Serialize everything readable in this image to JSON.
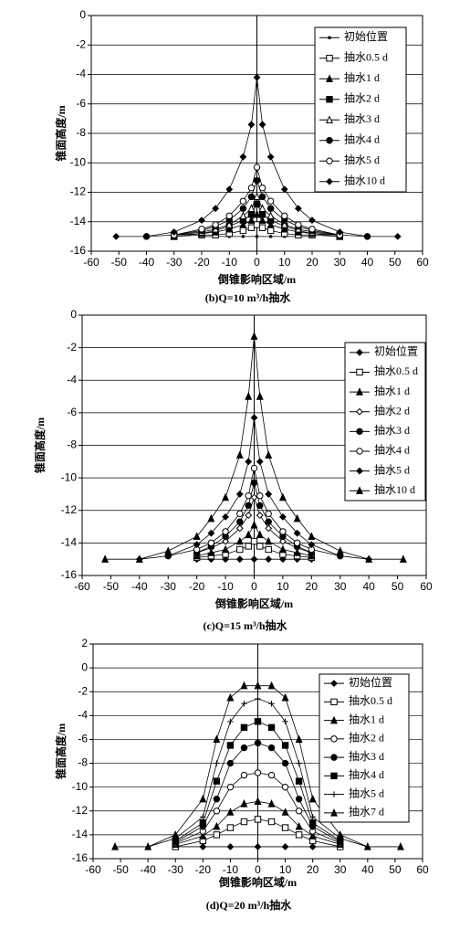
{
  "chart_data": [
    {
      "type": "line",
      "title": "(b)Q=10 m³/h抽水",
      "x_label": "倒锥影响区域/m",
      "y_label": "锥面高度/m",
      "xlim": [
        -60,
        60
      ],
      "ylim": [
        -16,
        0
      ],
      "xticks": [
        -60,
        -50,
        -40,
        -30,
        -20,
        -10,
        0,
        10,
        20,
        30,
        40,
        50,
        60
      ],
      "yticks": [
        -16,
        -14,
        -12,
        -10,
        -8,
        -6,
        -4,
        -2,
        0
      ],
      "grid": true,
      "legend": "upper right",
      "series": [
        {
          "name": "初始位置",
          "marker": "dot",
          "color": "#000",
          "x": [
            -20,
            -15,
            -10,
            -5,
            0,
            5,
            10,
            15,
            20
          ],
          "values": [
            -15,
            -15,
            -15,
            -15,
            -15,
            -15,
            -15,
            -15,
            -15
          ]
        },
        {
          "name": "抽水0.5 d",
          "marker": "open-square",
          "color": "#000",
          "x": [
            -30,
            -20,
            -15,
            -10,
            -5,
            -2,
            0,
            2,
            5,
            10,
            15,
            20,
            30
          ],
          "values": [
            -15,
            -14.9,
            -14.9,
            -14.8,
            -14.6,
            -14.4,
            -14.2,
            -14.4,
            -14.6,
            -14.8,
            -14.9,
            -14.9,
            -15
          ]
        },
        {
          "name": "抽水1 d",
          "marker": "triangle",
          "color": "#000",
          "x": [
            -30,
            -20,
            -15,
            -10,
            -5,
            -2,
            0,
            2,
            5,
            10,
            15,
            20,
            30
          ],
          "values": [
            -15,
            -14.8,
            -14.7,
            -14.5,
            -14.2,
            -13.9,
            -13.5,
            -13.9,
            -14.2,
            -14.5,
            -14.7,
            -14.8,
            -15
          ]
        },
        {
          "name": "抽水2 d",
          "marker": "square",
          "color": "#000",
          "x": [
            -30,
            -20,
            -15,
            -10,
            -5,
            -2,
            0,
            2,
            5,
            10,
            15,
            20,
            30
          ],
          "values": [
            -14.9,
            -14.8,
            -14.6,
            -14.3,
            -13.9,
            -13.5,
            -12.8,
            -13.5,
            -13.9,
            -14.3,
            -14.6,
            -14.8,
            -14.9
          ]
        },
        {
          "name": "抽水3 d",
          "marker": "open-triangle",
          "color": "#000",
          "x": [
            -30,
            -20,
            -15,
            -10,
            -5,
            -2,
            0,
            2,
            5,
            10,
            15,
            20,
            30
          ],
          "values": [
            -14.9,
            -14.7,
            -14.5,
            -14.2,
            -13.6,
            -13.1,
            -12.3,
            -13.1,
            -13.6,
            -14.2,
            -14.5,
            -14.7,
            -14.9
          ]
        },
        {
          "name": "抽水4 d",
          "marker": "circle",
          "color": "#000",
          "x": [
            -30,
            -20,
            -15,
            -10,
            -5,
            -2,
            0,
            2,
            5,
            10,
            15,
            20,
            30
          ],
          "values": [
            -14.9,
            -14.6,
            -14.3,
            -13.9,
            -13.1,
            -12.3,
            -11.2,
            -12.3,
            -13.1,
            -13.9,
            -14.3,
            -14.6,
            -14.9
          ]
        },
        {
          "name": "抽水5 d",
          "marker": "open-circle",
          "color": "#000",
          "x": [
            -40,
            -30,
            -20,
            -15,
            -10,
            -5,
            -2,
            0,
            2,
            5,
            10,
            15,
            20,
            30,
            40
          ],
          "values": [
            -15,
            -14.9,
            -14.5,
            -14.2,
            -13.6,
            -12.6,
            -11.7,
            -10.3,
            -11.7,
            -12.6,
            -13.6,
            -14.2,
            -14.5,
            -14.9,
            -15
          ]
        },
        {
          "name": "抽水10 d",
          "marker": "diamond",
          "color": "#000",
          "x": [
            -51,
            -40,
            -30,
            -20,
            -15,
            -10,
            -5,
            -2,
            0,
            2,
            5,
            10,
            15,
            20,
            30,
            40,
            51
          ],
          "values": [
            -15,
            -15,
            -14.7,
            -13.9,
            -13.1,
            -11.8,
            -9.6,
            -7.4,
            -4.2,
            -7.4,
            -9.6,
            -11.8,
            -13.1,
            -13.9,
            -14.7,
            -15,
            -15
          ]
        }
      ]
    },
    {
      "type": "line",
      "title": "(c)Q=15 m³/h抽水",
      "x_label": "倒锥影响区域/m",
      "y_label": "锥面高度/m",
      "xlim": [
        -60,
        60
      ],
      "ylim": [
        -16,
        0
      ],
      "xticks": [
        -60,
        -50,
        -40,
        -30,
        -20,
        -10,
        0,
        10,
        20,
        30,
        40,
        50,
        60
      ],
      "yticks": [
        -16,
        -14,
        -12,
        -10,
        -8,
        -6,
        -4,
        -2,
        0
      ],
      "grid": true,
      "legend": "upper right",
      "series": [
        {
          "name": "初始位置",
          "marker": "diamond",
          "color": "#000",
          "x": [
            -20,
            -15,
            -10,
            -5,
            0,
            5,
            10,
            15,
            20
          ],
          "values": [
            -15,
            -15,
            -15,
            -15,
            -15,
            -15,
            -15,
            -15,
            -15
          ]
        },
        {
          "name": "抽水0.5 d",
          "marker": "open-square",
          "color": "#000",
          "x": [
            -20,
            -15,
            -10,
            -5,
            -2,
            0,
            2,
            5,
            10,
            15,
            20
          ],
          "values": [
            -14.9,
            -14.8,
            -14.7,
            -14.4,
            -14.2,
            -13.9,
            -14.2,
            -14.4,
            -14.7,
            -14.8,
            -14.9
          ]
        },
        {
          "name": "抽水1 d",
          "marker": "triangle",
          "color": "#000",
          "x": [
            -20,
            -15,
            -10,
            -5,
            -2,
            0,
            2,
            5,
            10,
            15,
            20
          ],
          "values": [
            -14.8,
            -14.6,
            -14.4,
            -13.9,
            -13.5,
            -12.9,
            -13.5,
            -13.9,
            -14.4,
            -14.6,
            -14.8
          ]
        },
        {
          "name": "抽水2 d",
          "marker": "open-diamond",
          "color": "#000",
          "x": [
            -20,
            -15,
            -10,
            -5,
            -2,
            0,
            2,
            5,
            10,
            15,
            20
          ],
          "values": [
            -14.6,
            -14.3,
            -13.9,
            -13.1,
            -12.3,
            -11.2,
            -12.3,
            -13.1,
            -13.9,
            -14.3,
            -14.6
          ]
        },
        {
          "name": "抽水3 d",
          "marker": "circle",
          "color": "#000",
          "x": [
            -20,
            -15,
            -10,
            -5,
            -2,
            0,
            2,
            5,
            10,
            15,
            20
          ],
          "values": [
            -14.6,
            -14.2,
            -13.6,
            -12.7,
            -11.7,
            -10.3,
            -11.7,
            -12.7,
            -13.6,
            -14.2,
            -14.6
          ]
        },
        {
          "name": "抽水4 d",
          "marker": "open-circle",
          "color": "#000",
          "x": [
            -30,
            -20,
            -15,
            -10,
            -5,
            -2,
            0,
            2,
            5,
            10,
            15,
            20,
            30
          ],
          "values": [
            -14.8,
            -14.4,
            -14,
            -13.3,
            -12.2,
            -11.1,
            -9.4,
            -11.1,
            -12.2,
            -13.3,
            -14,
            -14.4,
            -14.8
          ]
        },
        {
          "name": "抽水5 d",
          "marker": "diamond",
          "color": "#000",
          "x": [
            -40,
            -30,
            -20,
            -15,
            -10,
            -5,
            -2,
            0,
            2,
            5,
            10,
            15,
            20,
            30,
            40
          ],
          "values": [
            -15,
            -14.8,
            -14.1,
            -13.4,
            -12.4,
            -11,
            -9,
            -6.3,
            -9,
            -11,
            -12.4,
            -13.4,
            -14.1,
            -14.8,
            -15
          ]
        },
        {
          "name": "抽水10 d",
          "marker": "triangle",
          "color": "#000",
          "x": [
            -52,
            -40,
            -30,
            -20,
            -15,
            -10,
            -5,
            -2,
            0,
            2,
            5,
            10,
            15,
            20,
            30,
            40,
            52
          ],
          "values": [
            -15,
            -15,
            -14.5,
            -13.6,
            -12.5,
            -11.2,
            -8.6,
            -5,
            -1.3,
            -5,
            -8.6,
            -11.2,
            -12.5,
            -13.6,
            -14.5,
            -15,
            -15
          ]
        }
      ]
    },
    {
      "type": "line",
      "title": "(d)Q=20 m³/h抽水",
      "x_label": "倒锥影响区域/m",
      "y_label": "锥面高度/m",
      "xlim": [
        -60,
        60
      ],
      "ylim": [
        -16,
        2
      ],
      "xticks": [
        -60,
        -50,
        -40,
        -30,
        -20,
        -10,
        0,
        10,
        20,
        30,
        40,
        50,
        60
      ],
      "yticks": [
        -16,
        -14,
        -12,
        -10,
        -8,
        -6,
        -4,
        -2,
        0,
        2
      ],
      "grid": true,
      "legend": "upper right",
      "series": [
        {
          "name": "初始位置",
          "marker": "diamond",
          "color": "#000",
          "x": [
            -30,
            -20,
            -10,
            0,
            10,
            20,
            30
          ],
          "values": [
            -15,
            -15,
            -15,
            -15,
            -15,
            -15,
            -15
          ]
        },
        {
          "name": "抽水0.5 d",
          "marker": "open-square",
          "color": "#000",
          "x": [
            -30,
            -20,
            -15,
            -10,
            -5,
            0,
            5,
            10,
            15,
            20,
            30
          ],
          "values": [
            -15,
            -14.5,
            -14,
            -13.4,
            -12.9,
            -12.7,
            -12.9,
            -13.4,
            -14,
            -14.5,
            -15
          ]
        },
        {
          "name": "抽水1 d",
          "marker": "triangle",
          "color": "#000",
          "x": [
            -30,
            -20,
            -15,
            -10,
            -5,
            0,
            5,
            10,
            15,
            20,
            30
          ],
          "values": [
            -14.8,
            -14.1,
            -13.3,
            -12.1,
            -11.4,
            -11.2,
            -11.4,
            -12.1,
            -13.3,
            -14.1,
            -14.8
          ]
        },
        {
          "name": "抽水2 d",
          "marker": "open-circle",
          "color": "#000",
          "x": [
            -30,
            -20,
            -15,
            -10,
            -5,
            0,
            5,
            10,
            15,
            20,
            30
          ],
          "values": [
            -14.7,
            -13.7,
            -12,
            -10,
            -9,
            -8.8,
            -9,
            -10,
            -12,
            -13.7,
            -14.7
          ]
        },
        {
          "name": "抽水3 d",
          "marker": "circle",
          "color": "#000",
          "x": [
            -30,
            -20,
            -15,
            -10,
            -5,
            0,
            5,
            10,
            15,
            20,
            30
          ],
          "values": [
            -14.6,
            -13.3,
            -11,
            -8,
            -6.7,
            -6.3,
            -6.7,
            -8,
            -11,
            -13.3,
            -14.6
          ]
        },
        {
          "name": "抽水4 d",
          "marker": "square",
          "color": "#000",
          "x": [
            -30,
            -20,
            -15,
            -10,
            -5,
            0,
            5,
            10,
            15,
            20,
            30
          ],
          "values": [
            -14.5,
            -13,
            -9.5,
            -6.5,
            -5,
            -4.5,
            -5,
            -6.5,
            -9.5,
            -13,
            -14.5
          ]
        },
        {
          "name": "抽水5 d",
          "marker": "cross",
          "color": "#000",
          "x": [
            -40,
            -30,
            -20,
            -15,
            -10,
            -5,
            0,
            5,
            10,
            15,
            20,
            30,
            40
          ],
          "values": [
            -15,
            -14.3,
            -12.5,
            -8,
            -4.5,
            -3,
            -2.6,
            -3,
            -4.5,
            -8,
            -12.5,
            -14.3,
            -15
          ]
        },
        {
          "name": "抽水7 d",
          "marker": "triangle",
          "color": "#000",
          "x": [
            -52,
            -40,
            -30,
            -20,
            -15,
            -10,
            -5,
            0,
            5,
            10,
            15,
            20,
            30,
            40,
            52
          ],
          "values": [
            -15,
            -15,
            -14,
            -11,
            -6,
            -2.5,
            -1.5,
            -1.5,
            -1.5,
            -2.5,
            -6,
            -11,
            -14,
            -15,
            -15
          ]
        }
      ]
    }
  ]
}
